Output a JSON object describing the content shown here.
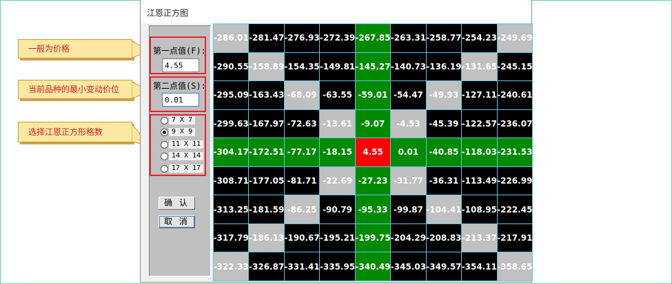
{
  "window": {
    "title": "江恩正方图"
  },
  "callouts": {
    "price": "一般为价格",
    "min_tick": "当前品种的最小变动价位",
    "grid_size": "选择江恩正方形格数"
  },
  "form": {
    "first_point_label": "第一点值(F):",
    "first_point_value": "4.55",
    "second_point_label": "第二点值(S):",
    "second_point_value": "0.01"
  },
  "grid_options": [
    {
      "label": "7 X 7",
      "checked": false
    },
    {
      "label": "9 X 9",
      "checked": true
    },
    {
      "label": "11 X 11",
      "checked": false
    },
    {
      "label": "14 X 14",
      "checked": false
    },
    {
      "label": "17 X 17",
      "checked": false
    }
  ],
  "buttons": {
    "ok": "确 认",
    "cancel": "取 消"
  },
  "colors": {
    "black": "#000000",
    "green": "#008a00",
    "gray": "#c0c0c0",
    "red": "#ff0000"
  },
  "square": {
    "rows": [
      [
        {
          "v": "-286.01",
          "c": "gray"
        },
        {
          "v": "-281.47",
          "c": "black"
        },
        {
          "v": "-276.93",
          "c": "black"
        },
        {
          "v": "-272.39",
          "c": "black"
        },
        {
          "v": "-267.85",
          "c": "green"
        },
        {
          "v": "-263.31",
          "c": "black"
        },
        {
          "v": "-258.77",
          "c": "black"
        },
        {
          "v": "-254.23",
          "c": "black"
        },
        {
          "v": "-249.69",
          "c": "gray"
        }
      ],
      [
        {
          "v": "-290.55",
          "c": "black"
        },
        {
          "v": "-158.89",
          "c": "gray"
        },
        {
          "v": "-154.35",
          "c": "black"
        },
        {
          "v": "-149.81",
          "c": "black"
        },
        {
          "v": "-145.27",
          "c": "green"
        },
        {
          "v": "-140.73",
          "c": "black"
        },
        {
          "v": "-136.19",
          "c": "black"
        },
        {
          "v": "-131.65",
          "c": "gray"
        },
        {
          "v": "-245.15",
          "c": "black"
        }
      ],
      [
        {
          "v": "-295.09",
          "c": "black"
        },
        {
          "v": "-163.43",
          "c": "black"
        },
        {
          "v": "-68.09",
          "c": "gray"
        },
        {
          "v": "-63.55",
          "c": "black"
        },
        {
          "v": "-59.01",
          "c": "green"
        },
        {
          "v": "-54.47",
          "c": "black"
        },
        {
          "v": "-49.93",
          "c": "gray"
        },
        {
          "v": "-127.11",
          "c": "black"
        },
        {
          "v": "-240.61",
          "c": "black"
        }
      ],
      [
        {
          "v": "-299.63",
          "c": "black"
        },
        {
          "v": "-167.97",
          "c": "black"
        },
        {
          "v": "-72.63",
          "c": "black"
        },
        {
          "v": "-13.61",
          "c": "gray"
        },
        {
          "v": "-9.07",
          "c": "green"
        },
        {
          "v": "-4.53",
          "c": "gray"
        },
        {
          "v": "-45.39",
          "c": "black"
        },
        {
          "v": "-122.57",
          "c": "black"
        },
        {
          "v": "-236.07",
          "c": "black"
        }
      ],
      [
        {
          "v": "-304.17",
          "c": "green"
        },
        {
          "v": "-172.51",
          "c": "green"
        },
        {
          "v": "-77.17",
          "c": "green"
        },
        {
          "v": "-18.15",
          "c": "green"
        },
        {
          "v": "4.55",
          "c": "red"
        },
        {
          "v": "0.01",
          "c": "green"
        },
        {
          "v": "-40.85",
          "c": "green"
        },
        {
          "v": "-118.03",
          "c": "green"
        },
        {
          "v": "-231.53",
          "c": "green"
        }
      ],
      [
        {
          "v": "-308.71",
          "c": "black"
        },
        {
          "v": "-177.05",
          "c": "black"
        },
        {
          "v": "-81.71",
          "c": "black"
        },
        {
          "v": "-22.69",
          "c": "gray"
        },
        {
          "v": "-27.23",
          "c": "green"
        },
        {
          "v": "-31.77",
          "c": "gray"
        },
        {
          "v": "-36.31",
          "c": "black"
        },
        {
          "v": "-113.49",
          "c": "black"
        },
        {
          "v": "-226.99",
          "c": "black"
        }
      ],
      [
        {
          "v": "-313.25",
          "c": "black"
        },
        {
          "v": "-181.59",
          "c": "black"
        },
        {
          "v": "-86.25",
          "c": "gray"
        },
        {
          "v": "-90.79",
          "c": "black"
        },
        {
          "v": "-95.33",
          "c": "green"
        },
        {
          "v": "-99.87",
          "c": "black"
        },
        {
          "v": "-104.41",
          "c": "gray"
        },
        {
          "v": "-108.95",
          "c": "black"
        },
        {
          "v": "-222.45",
          "c": "black"
        }
      ],
      [
        {
          "v": "-317.79",
          "c": "black"
        },
        {
          "v": "-186.13",
          "c": "gray"
        },
        {
          "v": "-190.67",
          "c": "black"
        },
        {
          "v": "-195.21",
          "c": "black"
        },
        {
          "v": "-199.75",
          "c": "green"
        },
        {
          "v": "-204.29",
          "c": "black"
        },
        {
          "v": "-208.83",
          "c": "black"
        },
        {
          "v": "-213.37",
          "c": "gray"
        },
        {
          "v": "-217.91",
          "c": "black"
        }
      ],
      [
        {
          "v": "-322.33",
          "c": "gray"
        },
        {
          "v": "-326.87",
          "c": "black"
        },
        {
          "v": "-331.41",
          "c": "black"
        },
        {
          "v": "-335.95",
          "c": "black"
        },
        {
          "v": "-340.49",
          "c": "green"
        },
        {
          "v": "-345.03",
          "c": "black"
        },
        {
          "v": "-349.57",
          "c": "black"
        },
        {
          "v": "-354.11",
          "c": "black"
        },
        {
          "v": "-358.65",
          "c": "gray"
        }
      ]
    ]
  }
}
